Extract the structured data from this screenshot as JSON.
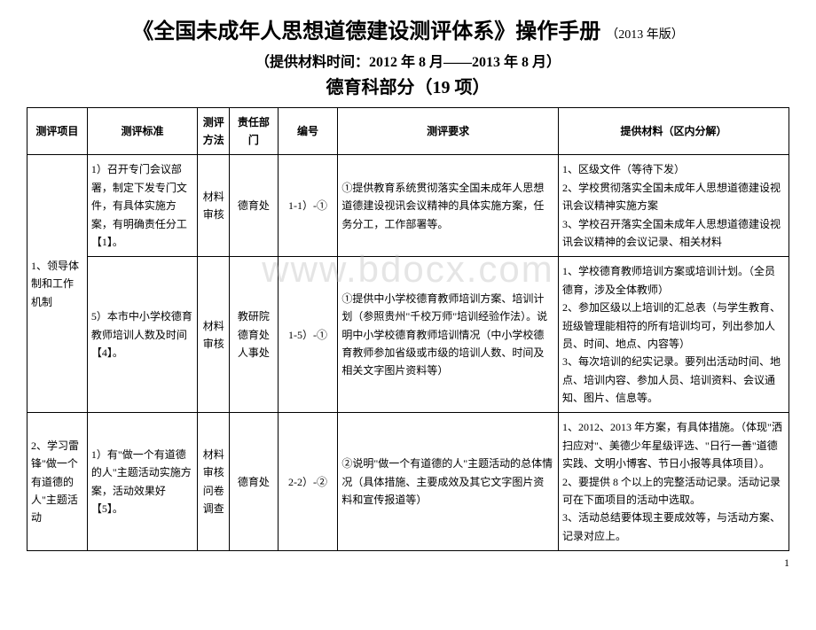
{
  "title_main": "《全国未成年人思想道德建设测评体系》操作手册",
  "title_edition": "（2013 年版）",
  "subtitle": "（提供材料时间：2012 年 8 月——2013 年 8 月）",
  "section_title": "德育科部分（19 项）",
  "watermark": "www.bdocx.com",
  "headers": {
    "project": "测评项目",
    "standard": "测评标准",
    "method": "测评方法",
    "dept": "责任部门",
    "num": "编号",
    "req": "测评要求",
    "material": "提供材料（区内分解）"
  },
  "rows": [
    {
      "project": "1、领导体制和工作机制",
      "project_rowspan": 2,
      "standard": "1）召开专门会议部署，制定下发专门文件，有具体实施方案，有明确责任分工【1】。",
      "method": "材料审核",
      "dept": "德育处",
      "num": "1-1）-①",
      "req": "①提供教育系统贯彻落实全国未成年人思想道德建设视讯会议精神的具体实施方案，任务分工，工作部署等。",
      "material": "1、区级文件（等待下发）\n2、学校贯彻落实全国未成年人思想道德建设视讯会议精神实施方案\n3、学校召开落实全国未成年人思想道德建设视讯会议精神的会议记录、相关材料"
    },
    {
      "standard": "5）本市中小学校德育教师培训人数及时间【4】。",
      "method": "材料审核",
      "dept": "教研院德育处人事处",
      "num": "1-5）-①",
      "req": "①提供中小学校德育教师培训方案、培训计划（参照贵州\"千校万师\"培训经验作法）。说明中小学校德育教师培训情况（中小学校德育教师参加省级或市级的培训人数、时间及相关文字图片资料等）",
      "material": "1、学校德育教师培训方案或培训计划。（全员德育，涉及全体教师）\n2、参加区级以上培训的汇总表（与学生教育、班级管理能相符的所有培训均可，列出参加人员、时间、地点、内容等）\n3、每次培训的纪实记录。要列出活动时间、地点、培训内容、参加人员、培训资料、会议通知、图片、信息等。"
    },
    {
      "project": "2、学习雷锋\"做一个有道德的人\"主题活动",
      "standard": "1）有\"做一个有道德的人\"主题活动实施方案，活动效果好【5】。",
      "method": "材料审核问卷调查",
      "dept": "德育处",
      "num": "2-2）-②",
      "req": "②说明\"做一个有道德的人\"主题活动的总体情况（具体措施、主要成效及其它文字图片资料和宣传报道等）",
      "material": "1、2012、2013 年方案，有具体措施。（体现\"洒扫应对\"、美德少年星级评选、\"日行一善\"道德实践、文明小博客、节日小报等具体项目）。\n2、要提供 8 个以上的完整活动记录。活动记录可在下面项目的活动中选取。\n3、活动总结要体现主要成效等，与活动方案、记录对应上。"
    }
  ],
  "page_num": "1"
}
